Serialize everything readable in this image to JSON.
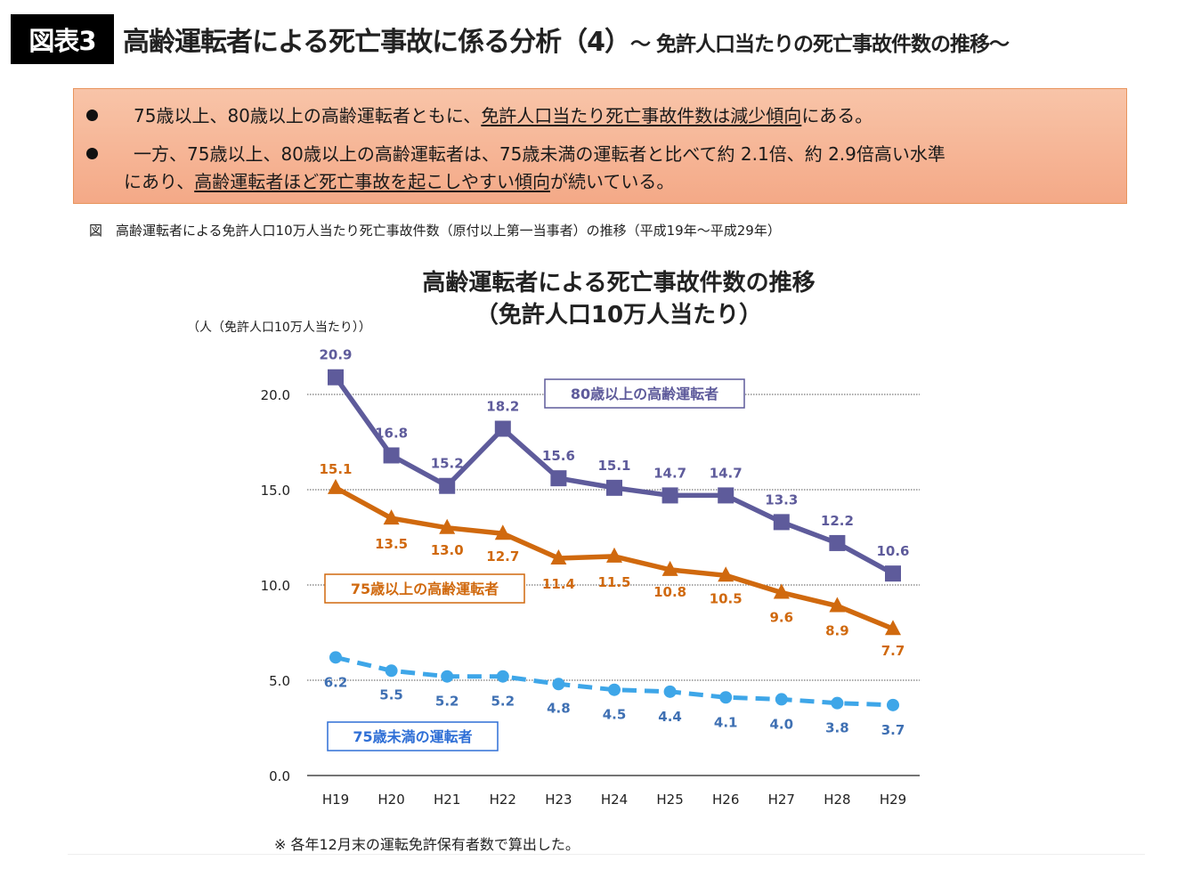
{
  "header": {
    "badge": "図表3",
    "title": "高齢運転者による死亡事故に係る分析（4）",
    "subtitle": "～ 免許人口当たりの死亡事故件数の推移～"
  },
  "summary": {
    "bullets": [
      {
        "parts": [
          {
            "text": "75歳以上、80歳以上の高齢運転者ともに、",
            "underline": false
          },
          {
            "text": "免許人口当たり死亡事故件数は減少傾向",
            "underline": true
          },
          {
            "text": "にある。",
            "underline": false
          }
        ]
      },
      {
        "parts": [
          {
            "text": "一方、75歳以上、80歳以上の高齢運転者は、75歳未満の運転者と比べて約 2.1倍、約 2.9倍高い水準",
            "underline": false
          }
        ],
        "continuation": [
          {
            "text": "にあり、",
            "underline": false
          },
          {
            "text": "高齢運転者ほど死亡事故を起こしやすい傾向",
            "underline": true
          },
          {
            "text": "が続いている。",
            "underline": false
          }
        ]
      }
    ]
  },
  "figure_caption": "図　高齢運転者による免許人口10万人当たり死亡事故件数（原付以上第一当事者）の推移（平成19年～平成29年）",
  "footnote": "※ 各年12月末の運転免許保有者数で算出した。",
  "chart_data": {
    "type": "line",
    "title": "高齢運転者による死亡事故件数の推移",
    "subtitle": "（免許人口10万人当たり）",
    "ylabel": "（人（免許人口10万人当たり））",
    "xlabel": "",
    "categories": [
      "H19",
      "H20",
      "H21",
      "H22",
      "H23",
      "H24",
      "H25",
      "H26",
      "H27",
      "H28",
      "H29"
    ],
    "ylim": [
      0,
      20
    ],
    "yticks": [
      0,
      5,
      10,
      15,
      20
    ],
    "ytick_labels": [
      "0.0",
      "5.0",
      "10.0",
      "15.0",
      "20.0"
    ],
    "grid": "horizontal dotted",
    "series": [
      {
        "name": "80歳以上の高齢運転者",
        "color": "#5e5b9b",
        "marker": "square",
        "line_style": "solid",
        "values": [
          20.9,
          16.8,
          15.2,
          18.2,
          15.6,
          15.1,
          14.7,
          14.7,
          13.3,
          12.2,
          10.6
        ],
        "label_position": "above"
      },
      {
        "name": "75歳以上の高齢運転者",
        "color": "#d0690e",
        "marker": "triangle",
        "line_style": "solid",
        "values": [
          15.1,
          13.5,
          13.0,
          12.7,
          11.4,
          11.5,
          10.8,
          10.5,
          9.6,
          8.9,
          7.7
        ],
        "label_position": "below"
      },
      {
        "name": "75歳未満の運転者",
        "color": "#3ea6e8",
        "label_color": "#3f70b3",
        "legend_color": "#2f6fd6",
        "marker": "circle",
        "line_style": "dashed",
        "values": [
          6.2,
          5.5,
          5.2,
          5.2,
          4.8,
          4.5,
          4.4,
          4.1,
          4.0,
          3.8,
          3.7
        ],
        "label_position": "below"
      }
    ]
  }
}
